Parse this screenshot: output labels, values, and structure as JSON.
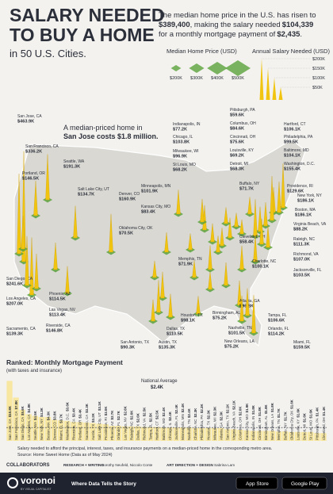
{
  "header": {
    "title_lines": [
      "SALARY NEEDED",
      "TO BUY A HOME"
    ],
    "subtitle": "in 50 U.S. Cities.",
    "intro": [
      "The median home price in the U.S. has risen to",
      "$389,400",
      ", making the salary needed",
      "$104,339",
      "for a monthly mortgage payment of",
      "$2,435",
      "."
    ]
  },
  "legend": {
    "price_title": "Median Home Price (USD)",
    "price_ticks": [
      "$200K",
      "$300K",
      "$400K",
      "$500K"
    ],
    "salary_title": "Annual Salary Needed (USD)",
    "salary_ticks": [
      "$200K",
      "$150K",
      "$100K",
      "$50K"
    ]
  },
  "callout": [
    "A median-priced home in",
    "San Jose costs $1.8 million."
  ],
  "cities": [
    {
      "name": "San Jose, CA",
      "salary": 463.9,
      "label": "$463.9K"
    },
    {
      "name": "San Francisco, CA",
      "salary": 336.2,
      "label": "$336.2K"
    },
    {
      "name": "Portland, OR",
      "salary": 146.5,
      "label": "$146.5K"
    },
    {
      "name": "Seattle, WA",
      "salary": 191.3,
      "label": "$191.3K"
    },
    {
      "name": "Salt Lake City, UT",
      "salary": 134.7,
      "label": "$134.7K"
    },
    {
      "name": "Denver, CO",
      "salary": 160.9,
      "label": "$160.9K"
    },
    {
      "name": "Minneapolis, MN",
      "salary": 101.9,
      "label": "$101.9K"
    },
    {
      "name": "Indianapolis, IN",
      "salary": 77.2,
      "label": "$77.2K"
    },
    {
      "name": "Chicago, IL",
      "salary": 103.8,
      "label": "$103.8K"
    },
    {
      "name": "Milwaukee, WI",
      "salary": 96.9,
      "label": "$96.9K"
    },
    {
      "name": "St Louis, MO",
      "salary": 68.2,
      "label": "$68.2K"
    },
    {
      "name": "Pittsburgh, PA",
      "salary": 59.6,
      "label": "$59.6K"
    },
    {
      "name": "Columbus, OH",
      "salary": 84.6,
      "label": "$84.6K"
    },
    {
      "name": "Cincinnati, OH",
      "salary": 75.6,
      "label": "$75.6K"
    },
    {
      "name": "Louisville, KY",
      "salary": 69.2,
      "label": "$69.2K"
    },
    {
      "name": "Detroit, MI",
      "salary": 68.3,
      "label": "$68.3K"
    },
    {
      "name": "Hartford, CT",
      "salary": 106.1,
      "label": "$106.1K"
    },
    {
      "name": "Philadelphia, PA",
      "salary": 99.5,
      "label": "$99.5K"
    },
    {
      "name": "Baltimore, MD",
      "salary": 104.1,
      "label": "$104.1K"
    },
    {
      "name": "Washington, D.C.",
      "salary": 155.4,
      "label": "$155.4K"
    },
    {
      "name": "New York, NY",
      "salary": 186.1,
      "label": "$186.1K"
    },
    {
      "name": "Boston, MA",
      "salary": 186.1,
      "label": "$186.1K"
    },
    {
      "name": "Providence, RI",
      "salary": 129.6,
      "label": "$129.6K"
    },
    {
      "name": "Buffalo, NY",
      "salary": 71.7,
      "label": "$71.7K"
    },
    {
      "name": "Kansas City, MO",
      "salary": 83.4,
      "label": "$83.4K"
    },
    {
      "name": "Oklahoma City, OK",
      "salary": 70.5,
      "label": "$70.5K"
    },
    {
      "name": "Memphis, TN",
      "salary": 71.9,
      "label": "$71.9K"
    },
    {
      "name": "Cleveland, OH",
      "salary": 58.4,
      "label": "$58.4K"
    },
    {
      "name": "Virginia Beach, VA",
      "salary": 88.2,
      "label": "$88.2K"
    },
    {
      "name": "Raleigh, NC",
      "salary": 111.3,
      "label": "$111.3K"
    },
    {
      "name": "Richmond, VA",
      "salary": 107.0,
      "label": "$107.0K"
    },
    {
      "name": "Charlotte, NC",
      "salary": 100.1,
      "label": "$100.1K"
    },
    {
      "name": "Jacksonville, FL",
      "salary": 103.5,
      "label": "$103.5K"
    },
    {
      "name": "San Diego, CA",
      "salary": 241.6,
      "label": "$241.6K"
    },
    {
      "name": "Los Angeles, CA",
      "salary": 207.0,
      "label": "$207.0K"
    },
    {
      "name": "Phoenix, AZ",
      "salary": 114.5,
      "label": "$114.5K"
    },
    {
      "name": "Las Vegas, NV",
      "salary": 113.4,
      "label": "$113.4K"
    },
    {
      "name": "Riverside, CA",
      "salary": 146.8,
      "label": "$146.8K"
    },
    {
      "name": "Sacramento, CA",
      "salary": 139.3,
      "label": "$139.3K"
    },
    {
      "name": "Atlanta, GA",
      "salary": 96.8,
      "label": "$96.8K"
    },
    {
      "name": "Birmingham, AL",
      "salary": 75.2,
      "label": "$75.2K"
    },
    {
      "name": "Nashville, TN",
      "salary": 101.5,
      "label": "$101.5K"
    },
    {
      "name": "Tampa, FL",
      "salary": 106.6,
      "label": "$106.6K"
    },
    {
      "name": "Orlando, FL",
      "salary": 114.2,
      "label": "$114.2K"
    },
    {
      "name": "New Orleans, LA",
      "salary": 75.2,
      "label": "$75.2K"
    },
    {
      "name": "Houston, TX",
      "salary": 98.1,
      "label": "$98.1K"
    },
    {
      "name": "Dallas, TX",
      "salary": 110.5,
      "label": "$110.5K"
    },
    {
      "name": "Austin, TX",
      "salary": 135.3,
      "label": "$135.3K"
    },
    {
      "name": "San Antonio, TX",
      "salary": 90.3,
      "label": "$90.3K"
    },
    {
      "name": "Miami, FL",
      "salary": 159.5,
      "label": "$159.5K"
    }
  ],
  "ranking": {
    "title": "Ranked: Monthly Mortgage Payment",
    "subtitle": "(with taxes and insurance)",
    "average": {
      "label": "National Average",
      "value": 2.4,
      "value_label": "$2.4K"
    },
    "items": [
      {
        "name": "San Jose, CA",
        "value": 10.8,
        "label": "$10.8K"
      },
      {
        "name": "San Francisco, CA",
        "value": 7.8,
        "label": "$7.8K"
      },
      {
        "name": "San Diego, CA",
        "value": 5.6,
        "label": "$5.6K"
      },
      {
        "name": "Los Angeles, CA",
        "value": 4.8,
        "label": "$4.8K"
      },
      {
        "name": "Seattle, WA",
        "value": 4.5,
        "label": "$4.5K"
      },
      {
        "name": "New York, NY",
        "value": 4.3,
        "label": "$4.3K"
      },
      {
        "name": "Boston, MA",
        "value": 4.3,
        "label": "$4.3K"
      },
      {
        "name": "Denver, CO",
        "value": 3.8,
        "label": "$3.8K"
      },
      {
        "name": "Miami, FL",
        "value": 3.7,
        "label": "$3.7K"
      },
      {
        "name": "Washington, D.C.",
        "value": 3.6,
        "label": "$3.6K"
      },
      {
        "name": "Riverside, CA",
        "value": 3.4,
        "label": "$3.4K"
      },
      {
        "name": "Portland, OR",
        "value": 3.4,
        "label": "$3.4K"
      },
      {
        "name": "Sacramento, CA",
        "value": 3.3,
        "label": "$3.3K"
      },
      {
        "name": "Austin, TX",
        "value": 3.2,
        "label": "$3.2K"
      },
      {
        "name": "Salt Lake City, UT",
        "value": 3.1,
        "label": "$3.1K"
      },
      {
        "name": "Providence, RI",
        "value": 3.0,
        "label": "$3.0K"
      },
      {
        "name": "Phoenix, AZ",
        "value": 2.7,
        "label": "$2.7K"
      },
      {
        "name": "Orlando, FL",
        "value": 2.7,
        "label": "$2.7K"
      },
      {
        "name": "Las Vegas, NV",
        "value": 2.6,
        "label": "$2.6K"
      },
      {
        "name": "Raleigh, NC",
        "value": 2.6,
        "label": "$2.6K"
      },
      {
        "name": "Dallas, TX",
        "value": 2.6,
        "label": "$2.6K"
      },
      {
        "name": "Richmond, VA",
        "value": 2.5,
        "label": "$2.5K"
      },
      {
        "name": "Tampa, FL",
        "value": 2.5,
        "label": "$2.5K"
      },
      {
        "name": "Hartford, CT",
        "value": 2.5,
        "label": "$2.5K"
      },
      {
        "name": "Baltimore, MD",
        "value": 2.4,
        "label": "$2.4K"
      },
      {
        "name": "Chicago, IL",
        "value": 2.4,
        "label": "$2.4K"
      },
      {
        "name": "Jacksonville, FL",
        "value": 2.4,
        "label": "$2.4K"
      },
      {
        "name": "Minneapolis, MN",
        "value": 2.4,
        "label": "$2.4K"
      },
      {
        "name": "Nashville, TN",
        "value": 2.4,
        "label": "$2.4K"
      },
      {
        "name": "Charlotte, NC",
        "value": 2.3,
        "label": "$2.3K"
      },
      {
        "name": "Philadelphia, PA",
        "value": 2.3,
        "label": "$2.3K"
      },
      {
        "name": "Houston, TX",
        "value": 2.3,
        "label": "$2.3K"
      },
      {
        "name": "Milwaukee, WI",
        "value": 2.3,
        "label": "$2.3K"
      },
      {
        "name": "Atlanta, GA",
        "value": 2.3,
        "label": "$2.3K"
      },
      {
        "name": "San Antonio, TX",
        "value": 2.1,
        "label": "$2.1K"
      },
      {
        "name": "Virginia Beach, VA",
        "value": 2.1,
        "label": "$2.1K"
      },
      {
        "name": "Columbus, OH",
        "value": 2.0,
        "label": "$2.0K"
      },
      {
        "name": "Kansas City, MO",
        "value": 1.9,
        "label": "$1.9K"
      },
      {
        "name": "Indianapolis, IN",
        "value": 1.8,
        "label": "$1.8K"
      },
      {
        "name": "Cincinnati, OH",
        "value": 1.8,
        "label": "$1.8K"
      },
      {
        "name": "Birmingham, AL",
        "value": 1.8,
        "label": "$1.8K"
      },
      {
        "name": "New Orleans, LA",
        "value": 1.8,
        "label": "$1.8K"
      },
      {
        "name": "Memphis, TN",
        "value": 1.7,
        "label": "$1.7K"
      },
      {
        "name": "Buffalo, NY",
        "value": 1.7,
        "label": "$1.7K"
      },
      {
        "name": "Oklahoma City, OK",
        "value": 1.6,
        "label": "$1.6K"
      },
      {
        "name": "Louisville, KY",
        "value": 1.6,
        "label": "$1.6K"
      },
      {
        "name": "Detroit, MI",
        "value": 1.6,
        "label": "$1.6K"
      },
      {
        "name": "St Louis, MO",
        "value": 1.6,
        "label": "$1.6K"
      },
      {
        "name": "Pittsburgh, PA",
        "value": 1.4,
        "label": "$1.4K"
      },
      {
        "name": "Cleveland, OH",
        "value": 1.4,
        "label": "$1.4K"
      }
    ]
  },
  "footer": {
    "note": "Salary needed to afford the principal, interest, taxes, and insurance payments on a median-priced home in the corresponding metro area.",
    "source": "Source: Home Sweet Home (Data as of May 2024)",
    "collaborators": "COLLABORATORS",
    "research": "RESEARCH + WRITING",
    "research_names": "Dorothy Neufeld, Niccolo Conte",
    "design": "ART DIRECTION + DESIGN",
    "design_names": "Sabrina Lam",
    "brand": "voronoi",
    "brand_sub": "BY VISUAL CAPITALIST",
    "tagline": "Where Data Tells the Story",
    "app_store": "App Store",
    "google_play": "Google Play"
  }
}
